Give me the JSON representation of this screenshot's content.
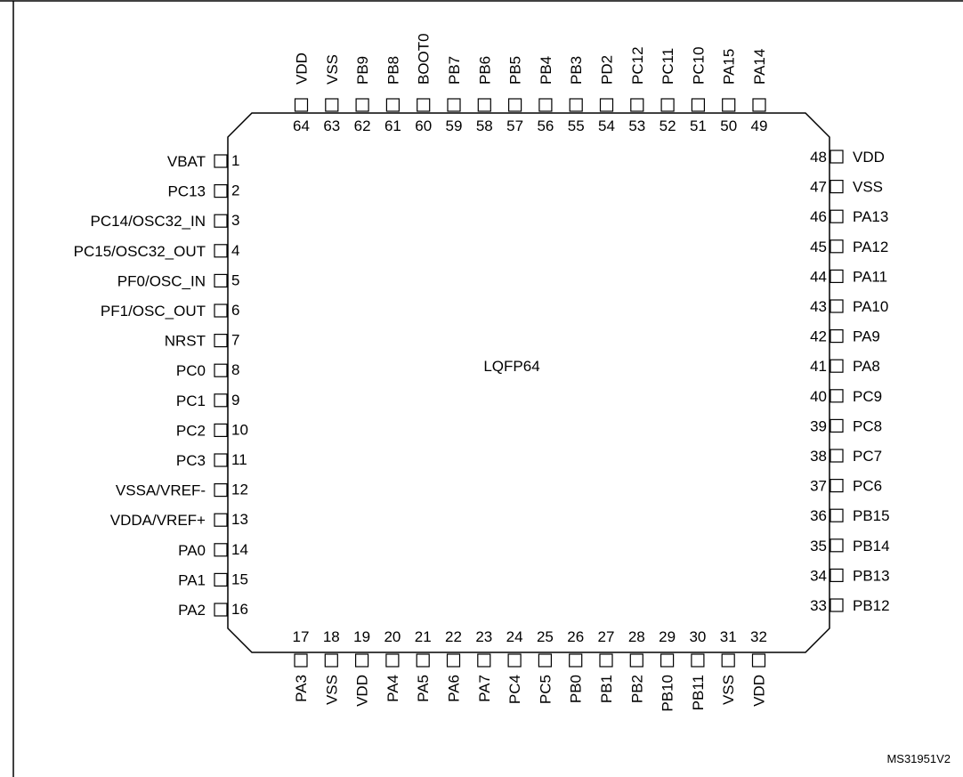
{
  "package_label": "LQFP64",
  "figure_ref": "MS31951V2",
  "pins": {
    "left": [
      {
        "num": "1",
        "name": "VBAT"
      },
      {
        "num": "2",
        "name": "PC13"
      },
      {
        "num": "3",
        "name": "PC14/OSC32_IN"
      },
      {
        "num": "4",
        "name": "PC15/OSC32_OUT"
      },
      {
        "num": "5",
        "name": "PF0/OSC_IN"
      },
      {
        "num": "6",
        "name": "PF1/OSC_OUT"
      },
      {
        "num": "7",
        "name": "NRST"
      },
      {
        "num": "8",
        "name": "PC0"
      },
      {
        "num": "9",
        "name": "PC1"
      },
      {
        "num": "10",
        "name": "PC2"
      },
      {
        "num": "11",
        "name": "PC3"
      },
      {
        "num": "12",
        "name": "VSSA/VREF-"
      },
      {
        "num": "13",
        "name": "VDDA/VREF+"
      },
      {
        "num": "14",
        "name": "PA0"
      },
      {
        "num": "15",
        "name": "PA1"
      },
      {
        "num": "16",
        "name": "PA2"
      }
    ],
    "bottom": [
      {
        "num": "17",
        "name": "PA3"
      },
      {
        "num": "18",
        "name": "VSS"
      },
      {
        "num": "19",
        "name": "VDD"
      },
      {
        "num": "20",
        "name": "PA4"
      },
      {
        "num": "21",
        "name": "PA5"
      },
      {
        "num": "22",
        "name": "PA6"
      },
      {
        "num": "23",
        "name": "PA7"
      },
      {
        "num": "24",
        "name": "PC4"
      },
      {
        "num": "25",
        "name": "PC5"
      },
      {
        "num": "26",
        "name": "PB0"
      },
      {
        "num": "27",
        "name": "PB1"
      },
      {
        "num": "28",
        "name": "PB2"
      },
      {
        "num": "29",
        "name": "PB10"
      },
      {
        "num": "30",
        "name": "PB11"
      },
      {
        "num": "31",
        "name": "VSS"
      },
      {
        "num": "32",
        "name": "VDD"
      }
    ],
    "right": [
      {
        "num": "33",
        "name": "PB12"
      },
      {
        "num": "34",
        "name": "PB13"
      },
      {
        "num": "35",
        "name": "PB14"
      },
      {
        "num": "36",
        "name": "PB15"
      },
      {
        "num": "37",
        "name": "PC6"
      },
      {
        "num": "38",
        "name": "PC7"
      },
      {
        "num": "39",
        "name": "PC8"
      },
      {
        "num": "40",
        "name": "PC9"
      },
      {
        "num": "41",
        "name": "PA8"
      },
      {
        "num": "42",
        "name": "PA9"
      },
      {
        "num": "43",
        "name": "PA10"
      },
      {
        "num": "44",
        "name": "PA11"
      },
      {
        "num": "45",
        "name": "PA12"
      },
      {
        "num": "46",
        "name": "PA13"
      },
      {
        "num": "47",
        "name": "VSS"
      },
      {
        "num": "48",
        "name": "VDD"
      }
    ],
    "top": [
      {
        "num": "49",
        "name": "PA14"
      },
      {
        "num": "50",
        "name": "PA15"
      },
      {
        "num": "51",
        "name": "PC10"
      },
      {
        "num": "52",
        "name": "PC11"
      },
      {
        "num": "53",
        "name": "PC12"
      },
      {
        "num": "54",
        "name": "PD2"
      },
      {
        "num": "55",
        "name": "PB3"
      },
      {
        "num": "56",
        "name": "PB4"
      },
      {
        "num": "57",
        "name": "PB5"
      },
      {
        "num": "58",
        "name": "PB6"
      },
      {
        "num": "59",
        "name": "PB7"
      },
      {
        "num": "60",
        "name": "BOOT0"
      },
      {
        "num": "61",
        "name": "PB8"
      },
      {
        "num": "62",
        "name": "PB9"
      },
      {
        "num": "63",
        "name": "VSS"
      },
      {
        "num": "64",
        "name": "VDD"
      }
    ]
  }
}
